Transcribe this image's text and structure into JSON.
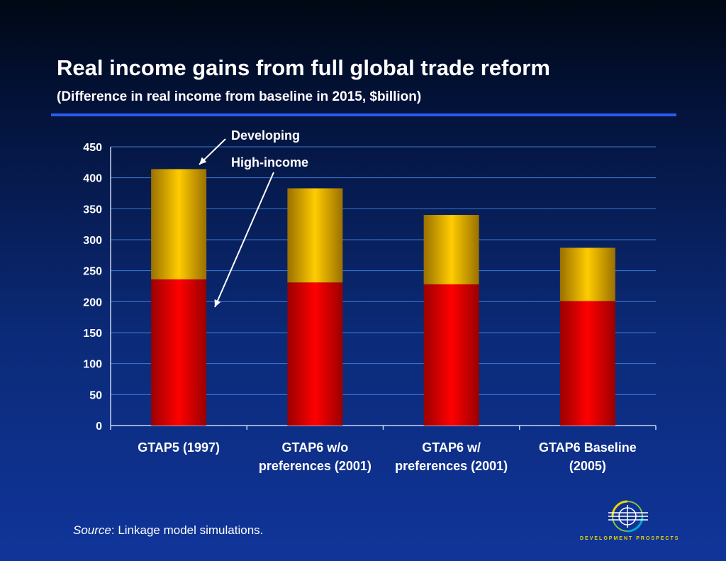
{
  "slide": {
    "title": "Real income gains from full global trade reform",
    "subtitle": "(Difference in real income from baseline in 2015, $billion)",
    "source_label": "Source",
    "source_text": ": Linkage model simulations.",
    "logo_text": "DEVELOPMENT PROSPECTS"
  },
  "colors": {
    "developing": "#ffcc00",
    "high_income": "#ff0000",
    "gridline": "#3a7bd5",
    "accent_rule": "#2a5cf0"
  },
  "chart_data": {
    "type": "bar",
    "stacked": true,
    "categories": [
      [
        "GTAP5 (1997)"
      ],
      [
        "GTAP6 w/o",
        "preferences (2001)"
      ],
      [
        "GTAP6 w/",
        "preferences (2001)"
      ],
      [
        "GTAP6 Baseline",
        "(2005)"
      ]
    ],
    "series": [
      {
        "name": "High-income",
        "values": [
          236,
          231,
          228,
          201
        ]
      },
      {
        "name": "Developing",
        "values": [
          178,
          152,
          112,
          86
        ]
      }
    ],
    "ylim": [
      0,
      450
    ],
    "yticks": [
      0,
      50,
      100,
      150,
      200,
      250,
      300,
      350,
      400,
      450
    ],
    "grid": true,
    "annotations": [
      "Developing",
      "High-income"
    ]
  }
}
